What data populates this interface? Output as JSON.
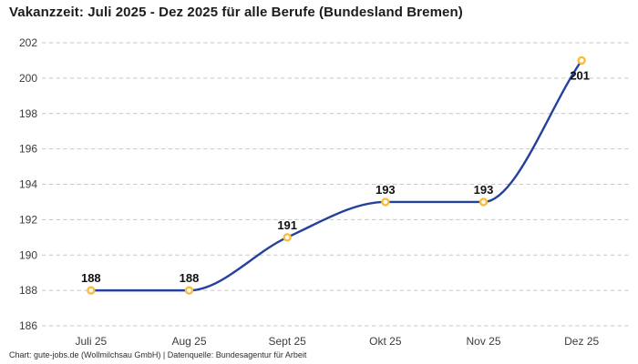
{
  "chart_data": {
    "type": "line",
    "title": "Vakanzzeit: Juli 2025 - Dez 2025 für alle Berufe (Bundesland Bremen)",
    "categories": [
      "Juli 25",
      "Aug 25",
      "Sept 25",
      "Okt 25",
      "Nov 25",
      "Dez 25"
    ],
    "values": [
      188,
      188,
      191,
      193,
      193,
      201
    ],
    "label_positions": [
      "above",
      "above",
      "above",
      "above",
      "above",
      "below"
    ],
    "xlabel": "",
    "ylabel": "",
    "ylim": [
      186,
      202
    ],
    "ytick_step": 2,
    "yticks": [
      186,
      188,
      190,
      192,
      194,
      196,
      198,
      200,
      202
    ],
    "grid": "horizontal-dashed",
    "legend": "none",
    "footer": "Chart: gute-jobs.de (Wollmilchsau GmbH) | Datenquelle: Bundesagentur für Arbeit",
    "colors": {
      "line": "#24419e",
      "marker_ring": "#fbbc3c",
      "marker_fill": "#ffffff",
      "grid": "#c8c8c8",
      "title": "#1c1c1c",
      "tick_label": "#3c3c3c",
      "data_label": "#101010",
      "footer": "#2e2e2e",
      "background": "#ffffff"
    }
  }
}
